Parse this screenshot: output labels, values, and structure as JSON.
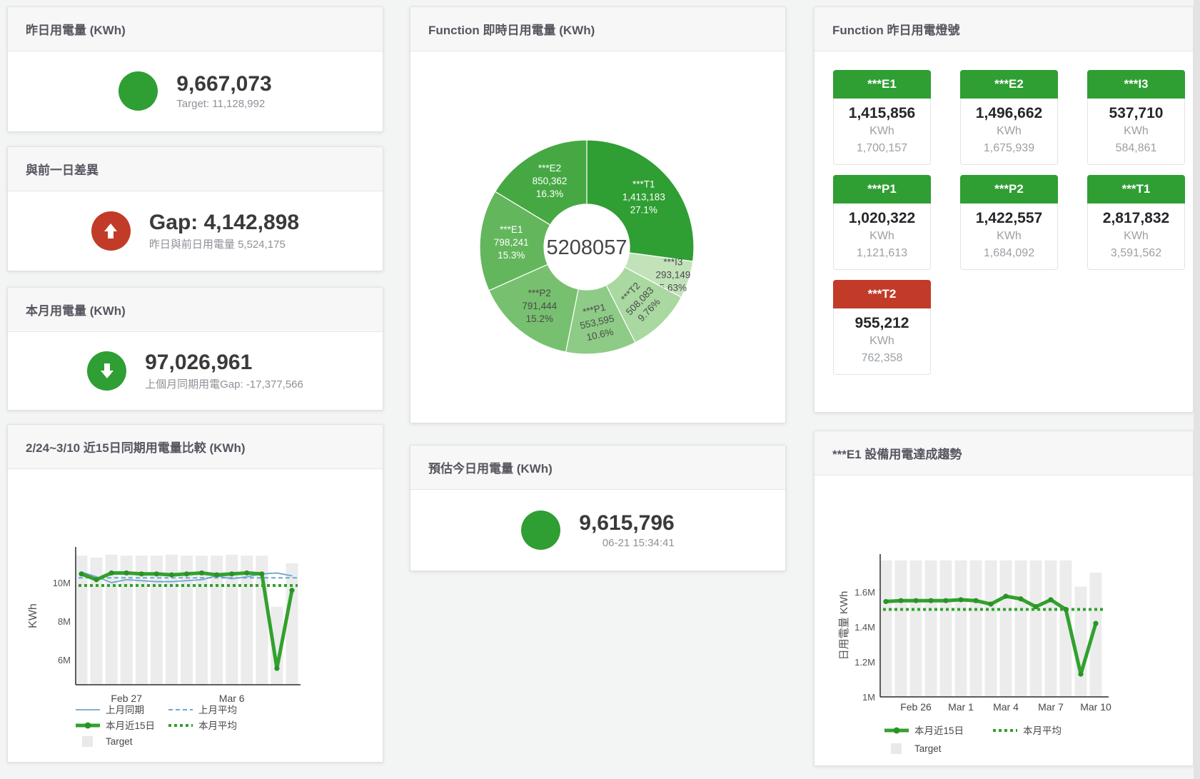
{
  "colors": {
    "green": "#2f9e33",
    "red": "#c13b28",
    "blue": "#6ea6d2",
    "target_bar": "#ececec",
    "line_green": "#32a12e"
  },
  "panels": {
    "yesterday": {
      "title": "昨日用電量 (KWh)",
      "value": "9,667,073",
      "subtitle": "Target: 11,128,992"
    },
    "gap_prev_day": {
      "title": "與前一日差異",
      "value": "Gap: 4,142,898",
      "subtitle": "昨日與前日用電量 5,524,175"
    },
    "month": {
      "title": "本月用電量 (KWh)",
      "value": "97,026,961",
      "subtitle": "上個月同期用電Gap: -17,377,566"
    },
    "realtime": {
      "title": "Function 即時日用電量 (KWh)"
    },
    "lamp": {
      "title": "Function 昨日用電燈號"
    },
    "compare": {
      "title": "2/24~3/10 近15日同期用電量比較 (KWh)"
    },
    "estimate": {
      "title": "預估今日用電量 (KWh)",
      "value": "9,615,796",
      "subtitle": "06-21 15:34:41"
    },
    "trend": {
      "title": "***E1 設備用電達成趨勢"
    }
  },
  "lamp_tiles": [
    {
      "label": "***E1",
      "value": "1,415,856",
      "unit": "KWh",
      "target": "1,700,157",
      "status": "green"
    },
    {
      "label": "***E2",
      "value": "1,496,662",
      "unit": "KWh",
      "target": "1,675,939",
      "status": "green"
    },
    {
      "label": "***I3",
      "value": "537,710",
      "unit": "KWh",
      "target": "584,861",
      "status": "green"
    },
    {
      "label": "***P1",
      "value": "1,020,322",
      "unit": "KWh",
      "target": "1,121,613",
      "status": "green"
    },
    {
      "label": "***P2",
      "value": "1,422,557",
      "unit": "KWh",
      "target": "1,684,092",
      "status": "green"
    },
    {
      "label": "***T1",
      "value": "2,817,832",
      "unit": "KWh",
      "target": "3,591,562",
      "status": "green"
    },
    {
      "label": "***T2",
      "value": "955,212",
      "unit": "KWh",
      "target": "762,358",
      "status": "red"
    }
  ],
  "chart_data": [
    {
      "type": "pie",
      "title": "Function 即時日用電量 (KWh)",
      "center_total": "5208057",
      "segments": [
        {
          "name": "***T1",
          "value": 1413183,
          "value_label": "1,413,183",
          "percent_label": "27.1%",
          "color": "#2f9e33",
          "label_color": "#ffffff",
          "label_pos": "inside"
        },
        {
          "name": "***I3",
          "value": 293149,
          "value_label": "293,149",
          "percent_label": "5.63%",
          "color": "#c2e3ba",
          "label_color": "#4a4a4a",
          "label_pos": "outside",
          "label_r": 127
        },
        {
          "name": "***T2",
          "value": 508083,
          "value_label": "508,083",
          "percent_label": "9.76%",
          "color": "#a9d8a0",
          "label_color": "#4a4a4a",
          "label_pos": "inside",
          "label_rotate": -46
        },
        {
          "name": "***P1",
          "value": 553595,
          "value_label": "553,595",
          "percent_label": "10.6%",
          "color": "#8ecb86",
          "label_color": "#4a4a4a",
          "label_pos": "inside",
          "label_rotate": -13
        },
        {
          "name": "***P2",
          "value": 791444,
          "value_label": "791,444",
          "percent_label": "15.2%",
          "color": "#77c06f",
          "label_color": "#4a4a4a",
          "label_pos": "inside"
        },
        {
          "name": "***E1",
          "value": 798241,
          "value_label": "798,241",
          "percent_label": "15.3%",
          "color": "#63b65c",
          "label_color": "#ffffff",
          "label_pos": "inside"
        },
        {
          "name": "***E2",
          "value": 850362,
          "value_label": "850,362",
          "percent_label": "16.3%",
          "color": "#46a843",
          "label_color": "#ffffff",
          "label_pos": "inside"
        }
      ]
    },
    {
      "type": "line+bar",
      "title": "2/24~3/10 近15日同期用電量比較 (KWh)",
      "ylabel": "KWh",
      "unit": "M KWh",
      "x_dates": [
        "Feb 24",
        "Feb 25",
        "Feb 26",
        "Feb 27",
        "Feb 28",
        "Mar 1",
        "Mar 2",
        "Mar 3",
        "Mar 4",
        "Mar 5",
        "Mar 6",
        "Mar 7",
        "Mar 8",
        "Mar 9",
        "Mar 10"
      ],
      "xticks": [
        {
          "index": 3,
          "label": "Feb 27"
        },
        {
          "index": 10,
          "label": "Mar 6"
        }
      ],
      "yticks": [
        {
          "v": 6,
          "label": "6M"
        },
        {
          "v": 8,
          "label": "8M"
        },
        {
          "v": 10,
          "label": "10M"
        }
      ],
      "ylim": [
        4.7,
        11.85
      ],
      "series": [
        {
          "name": "Target",
          "type": "bar",
          "color": "#ececec",
          "values": [
            11.4,
            11.3,
            11.45,
            11.4,
            11.4,
            11.4,
            11.45,
            11.4,
            11.4,
            11.4,
            11.45,
            11.4,
            11.4,
            8.75,
            11.0
          ]
        },
        {
          "name": "上月平均",
          "type": "line",
          "style": "dashed",
          "width": 2,
          "color": "#6ea6d2",
          "const": 10.25
        },
        {
          "name": "本月平均",
          "type": "line",
          "style": "dotted",
          "width": 4,
          "color": "#32a12e",
          "const": 9.85
        },
        {
          "name": "上月同期",
          "type": "line",
          "style": "solid",
          "width": 1.8,
          "color": "#6ea6d2",
          "values": [
            10.55,
            10.3,
            10.0,
            10.15,
            10.1,
            10.05,
            10.05,
            10.1,
            10.15,
            10.35,
            10.2,
            10.3,
            10.45,
            10.5,
            10.35
          ]
        },
        {
          "name": "本月近15日",
          "type": "line",
          "style": "solid",
          "width": 5,
          "color": "#32a12e",
          "markers": true,
          "values": [
            10.45,
            10.15,
            10.5,
            10.5,
            10.45,
            10.45,
            10.4,
            10.45,
            10.5,
            10.4,
            10.45,
            10.5,
            10.45,
            5.55,
            9.6
          ]
        }
      ],
      "legend_rows": [
        [
          "上月同期",
          "上月平均"
        ],
        [
          "本月近15日",
          "本月平均"
        ],
        [
          "Target"
        ]
      ],
      "legend_position": "bottom-left"
    },
    {
      "type": "line+bar",
      "title": "***E1 設備用電達成趨勢",
      "ylabel": "日用電量 KWh",
      "unit": "M KWh",
      "x_dates": [
        "Feb 24",
        "Feb 25",
        "Feb 26",
        "Feb 27",
        "Feb 28",
        "Mar 1",
        "Mar 2",
        "Mar 3",
        "Mar 4",
        "Mar 5",
        "Mar 6",
        "Mar 7",
        "Mar 8",
        "Mar 9",
        "Mar 10"
      ],
      "xticks": [
        {
          "index": 2,
          "label": "Feb 26"
        },
        {
          "index": 5,
          "label": "Mar 1"
        },
        {
          "index": 8,
          "label": "Mar 4"
        },
        {
          "index": 11,
          "label": "Mar 7"
        },
        {
          "index": 14,
          "label": "Mar 10"
        }
      ],
      "yticks": [
        {
          "v": 1.0,
          "label": "1M"
        },
        {
          "v": 1.2,
          "label": "1.2M"
        },
        {
          "v": 1.4,
          "label": "1.4M"
        },
        {
          "v": 1.6,
          "label": "1.6M"
        }
      ],
      "ylim": [
        1.0,
        1.816
      ],
      "series": [
        {
          "name": "Target",
          "type": "bar",
          "color": "#ececec",
          "values": [
            1.78,
            1.78,
            1.78,
            1.78,
            1.78,
            1.78,
            1.78,
            1.78,
            1.78,
            1.78,
            1.78,
            1.78,
            1.78,
            1.63,
            1.71
          ]
        },
        {
          "name": "本月平均",
          "type": "line",
          "style": "dotted",
          "width": 4,
          "color": "#32a12e",
          "const": 1.5
        },
        {
          "name": "本月近15日",
          "type": "line",
          "style": "solid",
          "width": 5,
          "color": "#32a12e",
          "markers": true,
          "values": [
            1.545,
            1.55,
            1.55,
            1.55,
            1.55,
            1.555,
            1.55,
            1.53,
            1.575,
            1.56,
            1.515,
            1.555,
            1.5,
            1.13,
            1.42
          ]
        }
      ],
      "legend_rows": [
        [
          "本月近15日",
          "本月平均"
        ],
        [
          "Target"
        ]
      ],
      "legend_position": "bottom-center"
    }
  ]
}
